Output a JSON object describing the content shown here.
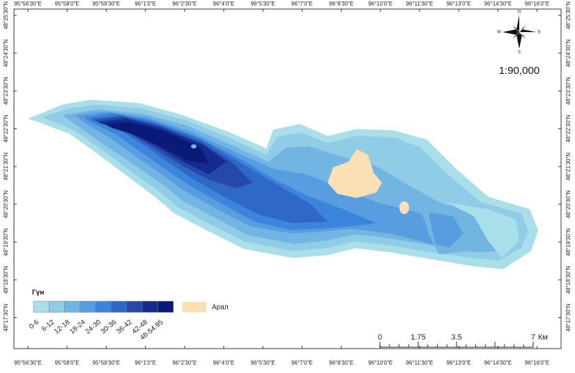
{
  "map": {
    "longitude_labels": [
      "95°56'30\"E",
      "95°58'0\"E",
      "95°59'30\"E",
      "96°1'0\"E",
      "96°2'30\"E",
      "96°4'0\"E",
      "96°5'30\"E",
      "96°7'0\"E",
      "96°8'30\"E",
      "96°10'0\"E",
      "96°11'30\"E",
      "96°13'0\"E",
      "96°14'30\"E",
      "96°16'0\"E"
    ],
    "latitude_labels": [
      "48°25'30\"N",
      "48°24'30\"N",
      "48°23'30\"N",
      "48°22'30\"N",
      "48°21'30\"N",
      "48°20'30\"N",
      "48°19'30\"N",
      "48°18'30\"N",
      "48°17'30\"N"
    ],
    "compass": {
      "north": "N",
      "east": "E",
      "south": "S",
      "west": "W"
    },
    "scale_ratio": "1:90,000",
    "legend": {
      "title": "Гүн",
      "classes": [
        {
          "label": "0-6",
          "color": "#a9dfe9"
        },
        {
          "label": "6-12",
          "color": "#90cce6"
        },
        {
          "label": "12-18",
          "color": "#73b5e2"
        },
        {
          "label": "18-24",
          "color": "#579ddf"
        },
        {
          "label": "24-30",
          "color": "#3b86dc"
        },
        {
          "label": "30-36",
          "color": "#2f68c6"
        },
        {
          "label": "36-42",
          "color": "#2449a9"
        },
        {
          "label": "42-48",
          "color": "#152c8f"
        },
        {
          "label": "48-54.95",
          "color": "#0b1a78"
        }
      ],
      "island": {
        "label": "Арал",
        "color": "#fbe0b4"
      }
    },
    "scale_bar": {
      "labels": [
        "0",
        "1.75",
        "3.5",
        "7"
      ],
      "unit": "Км"
    }
  }
}
